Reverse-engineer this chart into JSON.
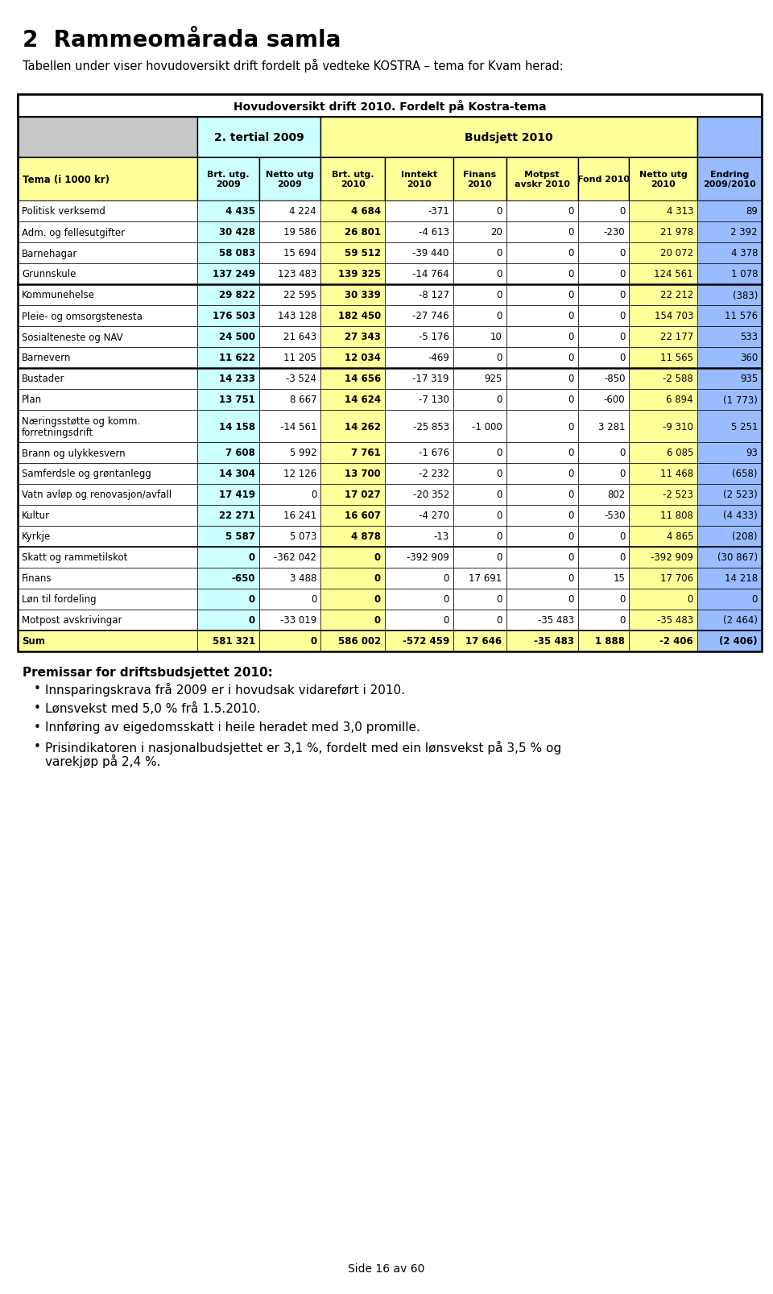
{
  "title": "2  Rammeomårada samla",
  "subtitle": "Tabellen under viser hovudoversikt drift fordelt på vedteke KOSTRA – tema for Kvam herad:",
  "table_title": "Hovudoversikt drift 2010. Fordelt på Kostra-tema",
  "col_headers": [
    "Tema (i 1000 kr)",
    "Brt. utg.\n2009",
    "Netto utg\n2009",
    "Brt. utg.\n2010",
    "Inntekt\n2010",
    "Finans\n2010",
    "Motpst\navskr 2010",
    "Fond 2010",
    "Netto utg\n2010",
    "Endring\n2009/2010"
  ],
  "rows": [
    [
      "Politisk verksemd",
      "4 435",
      "4 224",
      "4 684",
      "-371",
      "0",
      "0",
      "0",
      "4 313",
      "89"
    ],
    [
      "Adm. og fellesutgifter",
      "30 428",
      "19 586",
      "26 801",
      "-4 613",
      "20",
      "0",
      "-230",
      "21 978",
      "2 392"
    ],
    [
      "Barnehagar",
      "58 083",
      "15 694",
      "59 512",
      "-39 440",
      "0",
      "0",
      "0",
      "20 072",
      "4 378"
    ],
    [
      "Grunnskule",
      "137 249",
      "123 483",
      "139 325",
      "-14 764",
      "0",
      "0",
      "0",
      "124 561",
      "1 078"
    ],
    [
      "Kommunehelse",
      "29 822",
      "22 595",
      "30 339",
      "-8 127",
      "0",
      "0",
      "0",
      "22 212",
      "(383)"
    ],
    [
      "Pleie- og omsorgstenesta",
      "176 503",
      "143 128",
      "182 450",
      "-27 746",
      "0",
      "0",
      "0",
      "154 703",
      "11 576"
    ],
    [
      "Sosialteneste og NAV",
      "24 500",
      "21 643",
      "27 343",
      "-5 176",
      "10",
      "0",
      "0",
      "22 177",
      "533"
    ],
    [
      "Barnevern",
      "11 622",
      "11 205",
      "12 034",
      "-469",
      "0",
      "0",
      "0",
      "11 565",
      "360"
    ],
    [
      "Bustader",
      "14 233",
      "-3 524",
      "14 656",
      "-17 319",
      "925",
      "0",
      "-850",
      "-2 588",
      "935"
    ],
    [
      "Plan",
      "13 751",
      "8 667",
      "14 624",
      "-7 130",
      "0",
      "0",
      "-600",
      "6 894",
      "(1 773)"
    ],
    [
      "Næringsstøtte og komm.\nforretningsdrift",
      "14 158",
      "-14 561",
      "14 262",
      "-25 853",
      "-1 000",
      "0",
      "3 281",
      "-9 310",
      "5 251"
    ],
    [
      "Brann og ulykkesvern",
      "7 608",
      "5 992",
      "7 761",
      "-1 676",
      "0",
      "0",
      "0",
      "6 085",
      "93"
    ],
    [
      "Samferdsle og grøntanlegg",
      "14 304",
      "12 126",
      "13 700",
      "-2 232",
      "0",
      "0",
      "0",
      "11 468",
      "(658)"
    ],
    [
      "Vatn avløp og renovasjon/avfall",
      "17 419",
      "0",
      "17 027",
      "-20 352",
      "0",
      "0",
      "802",
      "-2 523",
      "(2 523)"
    ],
    [
      "Kultur",
      "22 271",
      "16 241",
      "16 607",
      "-4 270",
      "0",
      "0",
      "-530",
      "11 808",
      "(4 433)"
    ],
    [
      "Kyrkje",
      "5 587",
      "5 073",
      "4 878",
      "-13",
      "0",
      "0",
      "0",
      "4 865",
      "(208)"
    ],
    [
      "Skatt og rammetilskot",
      "0",
      "-362 042",
      "0",
      "-392 909",
      "0",
      "0",
      "0",
      "-392 909",
      "(30 867)"
    ],
    [
      "Finans",
      "-650",
      "3 488",
      "0",
      "0",
      "17 691",
      "0",
      "15",
      "17 706",
      "14 218"
    ],
    [
      "Løn til fordeling",
      "0",
      "0",
      "0",
      "0",
      "0",
      "0",
      "0",
      "0",
      "0"
    ],
    [
      "Motpost avskrivingar",
      "0",
      "-33 019",
      "0",
      "0",
      "0",
      "-35 483",
      "0",
      "-35 483",
      "(2 464)"
    ],
    [
      "Sum",
      "581 321",
      "0",
      "586 002",
      "-572 459",
      "17 646",
      "-35 483",
      "1 888",
      "-2 406",
      "(2 406)"
    ]
  ],
  "separator_after_rows": [
    3,
    7,
    15,
    19
  ],
  "color_yellow": "#FFFF99",
  "color_cyan": "#CCFFFF",
  "color_blue": "#99BBFF",
  "color_white": "#FFFFFF",
  "color_gray": "#C8C8C8",
  "premissar_title": "Premissar for driftsbudsjettet 2010:",
  "bullets": [
    "Innsparingskrava frå 2009 er i hovudsak vidareفørt i 2010.",
    "Lønsvekst med 5,0 % frå 1.5.2010.",
    "Innføring av eigedomsskatt i heile heradet med 3,0 promille.",
    "Prisindikatoren i nasjonalbudsjettet er 3,1 %, fordelt med ein lønsvekst på 3,5 % og varekjøp på 2,4 %."
  ],
  "footer": "Side 16 av 60"
}
